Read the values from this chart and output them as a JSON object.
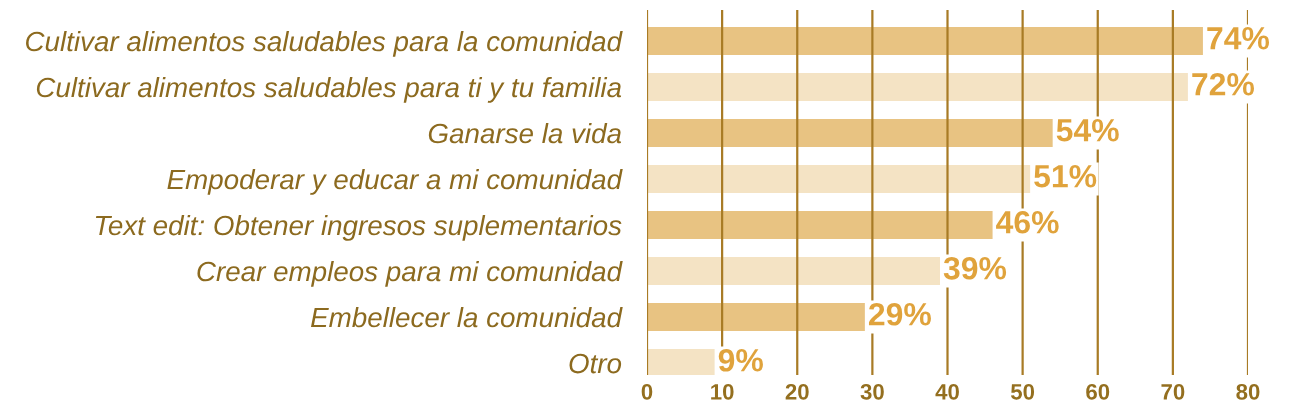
{
  "chart_data": {
    "type": "bar",
    "orientation": "horizontal",
    "categories": [
      "Cultivar alimentos saludables para la comunidad",
      "Cultivar alimentos saludables para ti y tu familia",
      "Ganarse la vida",
      "Empoderar y educar a mi comunidad",
      "Text edit: Obtener ingresos suplementarios",
      "Crear empleos para mi comunidad",
      "Embellecer la comunidad",
      "Otro"
    ],
    "values": [
      74,
      72,
      54,
      51,
      46,
      39,
      29,
      9
    ],
    "colors": [
      "#e8c382",
      "#f4e3c4",
      "#e8c382",
      "#f4e3c4",
      "#e8c382",
      "#f4e3c4",
      "#e8c382",
      "#f4e3c4"
    ],
    "value_labels": [
      "74%",
      "72%",
      "54%",
      "51%",
      "46%",
      "39%",
      "29%",
      "9%"
    ],
    "xlim": [
      0,
      80
    ],
    "xticks": [
      0,
      10,
      20,
      30,
      40,
      50,
      60,
      70,
      80
    ],
    "grid": "x"
  }
}
